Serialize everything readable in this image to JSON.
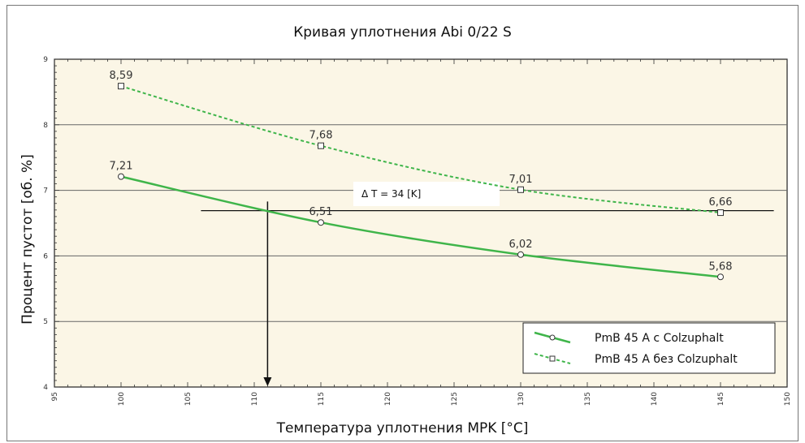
{
  "chart_data": {
    "type": "line",
    "title": "Кривая уплотнения Abi 0/22 S",
    "xlabel": "Температура уплотнения MPK [°C]",
    "ylabel": "Процент пустот [об. %]",
    "xlim": [
      95,
      150
    ],
    "ylim": [
      4,
      9
    ],
    "x_ticks": [
      95,
      100,
      105,
      110,
      115,
      120,
      125,
      130,
      135,
      140,
      145,
      150
    ],
    "y_ticks": [
      4,
      5,
      6,
      7,
      8,
      9
    ],
    "grid": "horizontal",
    "legend_position": "bottom-right",
    "series": [
      {
        "name": "PmB 45 A c Colzuphalt",
        "style": "solid",
        "marker": "circle",
        "color": "#3fb54a",
        "x": [
          100,
          115,
          130,
          145
        ],
        "y": [
          7.21,
          6.51,
          6.02,
          5.68
        ],
        "labels": [
          "7,21",
          "6,51",
          "6,02",
          "5,68"
        ]
      },
      {
        "name": "PmB 45 A без Colzuphalt",
        "style": "dotted",
        "marker": "square",
        "color": "#3fb54a",
        "x": [
          100,
          115,
          130,
          145
        ],
        "y": [
          8.59,
          7.68,
          7.01,
          6.66
        ],
        "labels": [
          "8,59",
          "7,68",
          "7,01",
          "6,66"
        ]
      }
    ],
    "annotations": {
      "delta_text": "Δ T = 34 [K]",
      "reference_y": 6.69,
      "reference_x_range": [
        106,
        149
      ],
      "arrow_x": 111,
      "arrow_y_from": 6.83
    }
  },
  "colors": {
    "plot_background": "#fbf6e6",
    "grid": "#666666",
    "series": "#3fb54a"
  }
}
